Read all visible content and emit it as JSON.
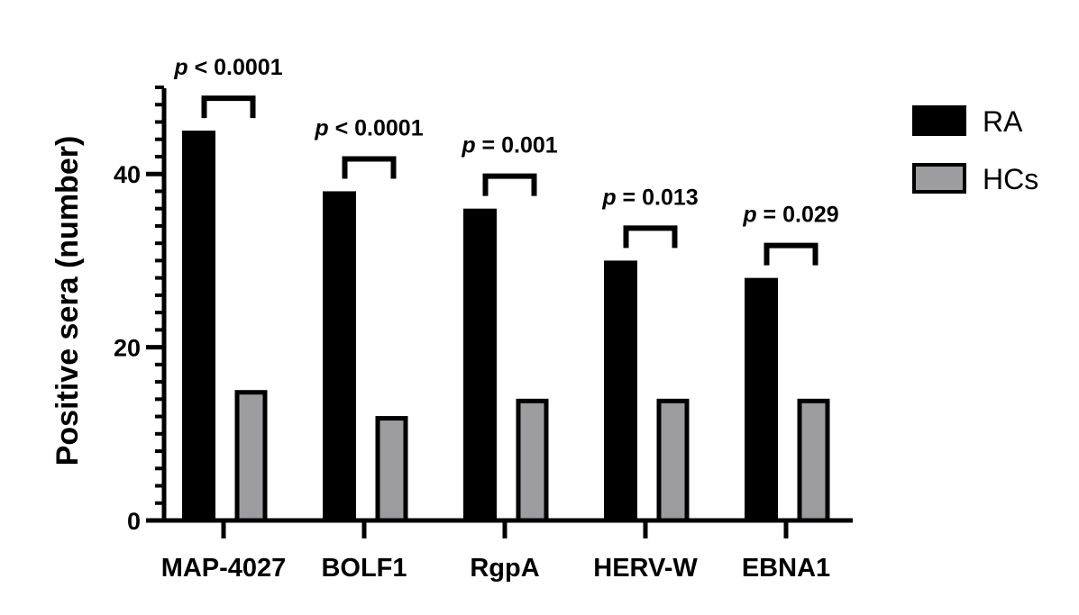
{
  "chart_data": {
    "type": "bar",
    "categories": [
      "MAP-4027",
      "BOLF1",
      "RgpA",
      "HERV-W",
      "EBNA1"
    ],
    "series": [
      {
        "name": "RA",
        "values": [
          45,
          38,
          36,
          30,
          28
        ],
        "color": "#000000"
      },
      {
        "name": "HCs",
        "values": [
          15,
          12,
          14,
          14,
          14
        ],
        "color": "#9d9d9f"
      }
    ],
    "ylabel": "Positive sera (number)",
    "xlabel": "",
    "ylim": [
      0,
      50
    ],
    "yticks": [
      0,
      20,
      40
    ],
    "minor_tick_step": 2,
    "grid": false,
    "legend_position": "right",
    "comparisons": [
      {
        "category": "MAP-4027",
        "p_label": "p",
        "p_text": " < 0.0001"
      },
      {
        "category": "BOLF1",
        "p_label": "p",
        "p_text": " < 0.0001"
      },
      {
        "category": "RgpA",
        "p_label": "p",
        "p_text": " = 0.001"
      },
      {
        "category": "HERV-W",
        "p_label": "p",
        "p_text": " = 0.013"
      },
      {
        "category": "EBNA1",
        "p_label": "p",
        "p_text": " = 0.029"
      }
    ]
  }
}
